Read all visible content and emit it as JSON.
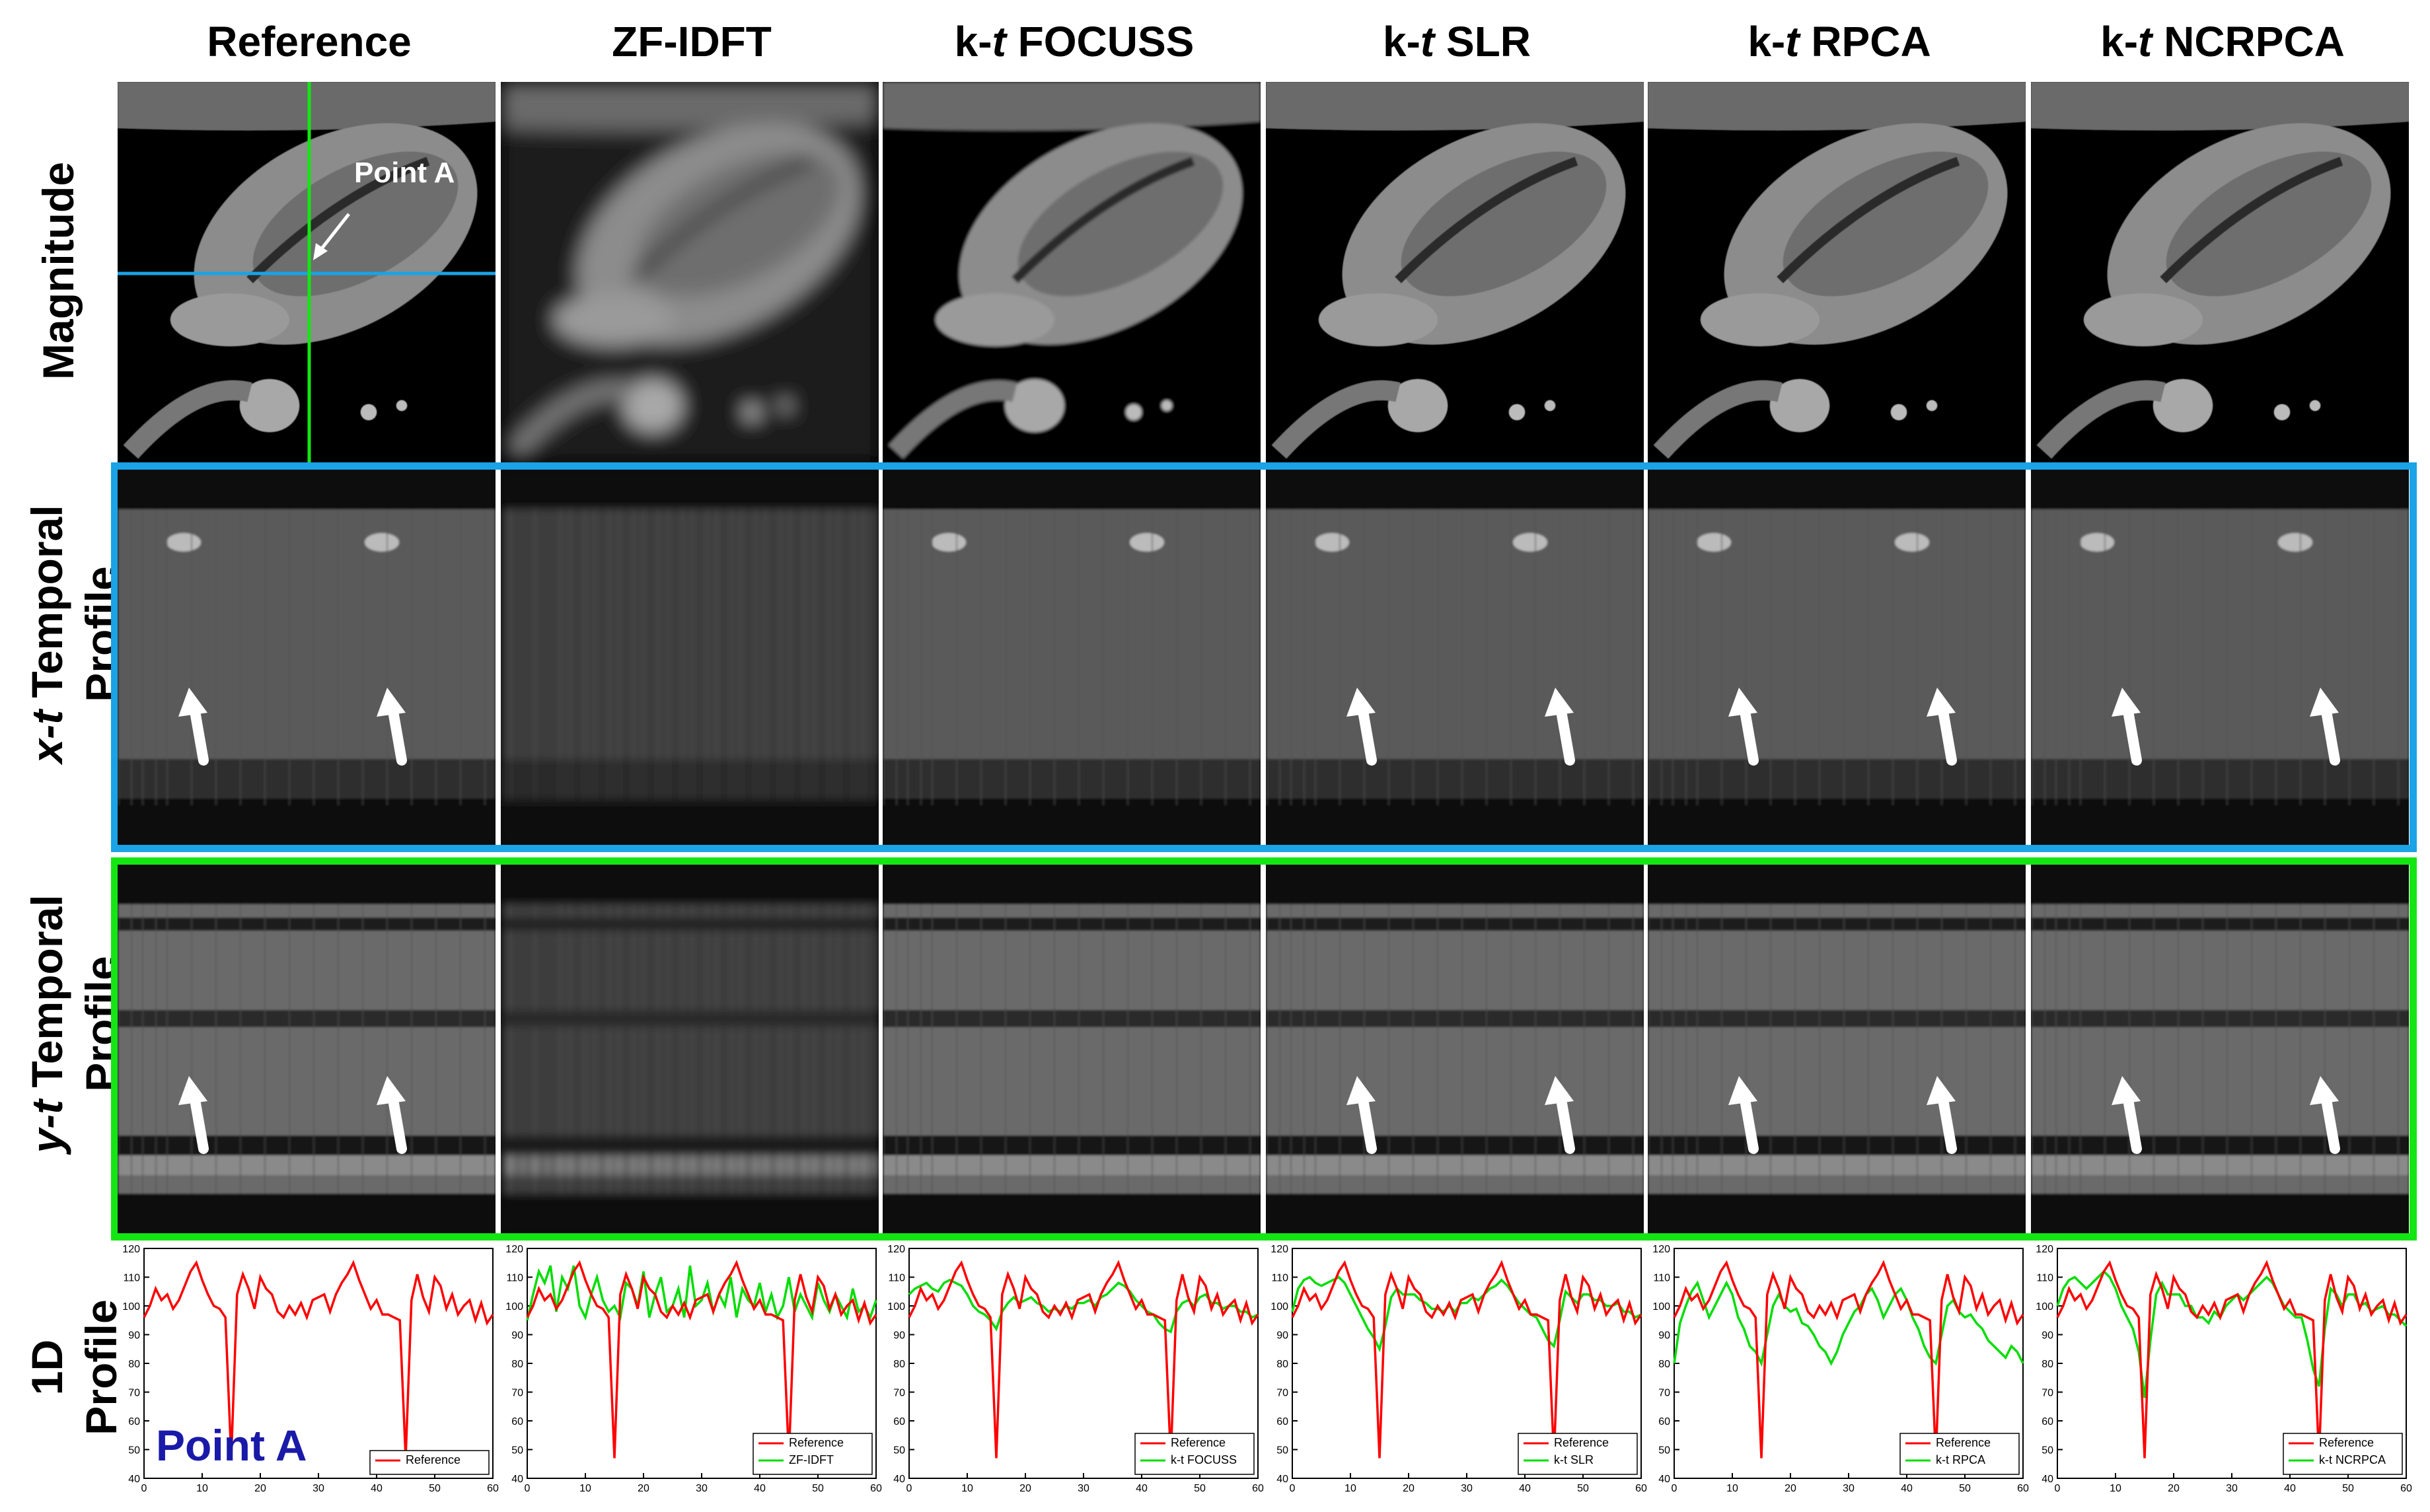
{
  "columns": [
    {
      "prefix": "",
      "italic": "",
      "suffix": "Reference"
    },
    {
      "prefix": "",
      "italic": "",
      "suffix": "ZF-IDFT"
    },
    {
      "prefix": "k-",
      "italic": "t",
      "suffix": " FOCUSS"
    },
    {
      "prefix": "k-",
      "italic": "t",
      "suffix": " SLR"
    },
    {
      "prefix": "k-",
      "italic": "t",
      "suffix": " RPCA"
    },
    {
      "prefix": "k-",
      "italic": "t",
      "suffix": " NCRPCA"
    }
  ],
  "rows": {
    "magnitude": "Magnitude",
    "xt": {
      "italic": "x-t",
      "rest": " Temporal",
      "line2": "Profile"
    },
    "yt": {
      "italic": "y-t",
      "rest": " Temporal",
      "line2": "Profile"
    },
    "oned": {
      "line1": "1D",
      "line2": "Profile"
    }
  },
  "annotation": {
    "point_label": "Point A"
  },
  "colors": {
    "xt_frame": "#1aa3e6",
    "yt_frame": "#14e614",
    "reference_line": "#ff0000",
    "method_line": "#00dd00",
    "point_a_label": "#1a1aa8"
  },
  "chart_data": {
    "type": "line",
    "ylim": [
      40,
      120
    ],
    "xlim": [
      0,
      60
    ],
    "yticks": [
      "120",
      "110",
      "100",
      "90",
      "80",
      "70",
      "60",
      "50",
      "40"
    ],
    "xticks": [
      "0",
      "10",
      "20",
      "30",
      "40",
      "50",
      "60"
    ],
    "legend_position": "bottom-right",
    "reference_name": "Reference",
    "reference": [
      96,
      100,
      106,
      102,
      104,
      99,
      102,
      107,
      112,
      115,
      109,
      104,
      100,
      99,
      96,
      47,
      104,
      111,
      106,
      99,
      110,
      106,
      104,
      98,
      96,
      100,
      97,
      101,
      96,
      102,
      103,
      104,
      98,
      104,
      108,
      111,
      115,
      109,
      104,
      99,
      102,
      97,
      97,
      96,
      95,
      47,
      102,
      111,
      103,
      98,
      110,
      107,
      99,
      104,
      97,
      100,
      102,
      95,
      101,
      94,
      97
    ],
    "panels": [
      {
        "legend": [
          "Reference"
        ],
        "method": null
      },
      {
        "legend": [
          "Reference",
          "ZF-IDFT"
        ],
        "method": [
          95,
          104,
          112,
          108,
          114,
          98,
          110,
          106,
          114,
          100,
          96,
          104,
          110,
          102,
          98,
          100,
          96,
          108,
          106,
          100,
          112,
          96,
          104,
          110,
          98,
          100,
          106,
          96,
          114,
          100,
          102,
          108,
          98,
          104,
          100,
          110,
          96,
          106,
          102,
          100,
          108,
          98,
          104,
          96,
          100,
          110,
          98,
          104,
          100,
          96,
          108,
          102,
          98,
          104,
          100,
          96,
          106,
          98,
          100,
          96,
          102
        ]
      },
      {
        "legend": [
          "Reference",
          "k-t FOCUSS"
        ],
        "method": [
          104,
          106,
          107,
          108,
          106,
          105,
          108,
          109,
          108,
          107,
          104,
          100,
          98,
          97,
          95,
          92,
          98,
          101,
          103,
          101,
          102,
          103,
          101,
          100,
          98,
          99,
          98,
          100,
          99,
          101,
          101,
          102,
          100,
          103,
          104,
          106,
          108,
          107,
          105,
          102,
          100,
          98,
          97,
          94,
          92,
          91,
          98,
          101,
          102,
          100,
          103,
          104,
          101,
          101,
          99,
          100,
          100,
          98,
          98,
          96,
          97
        ]
      },
      {
        "legend": [
          "Reference",
          "k-t SLR"
        ],
        "method": [
          98,
          106,
          109,
          110,
          108,
          107,
          108,
          109,
          110,
          108,
          104,
          100,
          96,
          92,
          89,
          85,
          93,
          103,
          106,
          104,
          104,
          104,
          102,
          101,
          99,
          99,
          98,
          100,
          98,
          101,
          101,
          103,
          102,
          104,
          106,
          107,
          109,
          107,
          104,
          101,
          99,
          97,
          96,
          92,
          88,
          86,
          95,
          105,
          103,
          101,
          104,
          104,
          102,
          102,
          100,
          100,
          101,
          98,
          98,
          96,
          97
        ]
      },
      {
        "legend": [
          "Reference",
          "k-t RPCA"
        ],
        "method": [
          80,
          94,
          100,
          105,
          108,
          102,
          96,
          100,
          104,
          108,
          104,
          96,
          92,
          86,
          84,
          80,
          90,
          100,
          104,
          100,
          98,
          99,
          94,
          93,
          90,
          86,
          84,
          80,
          84,
          90,
          94,
          98,
          100,
          104,
          106,
          102,
          96,
          100,
          104,
          106,
          102,
          96,
          92,
          86,
          82,
          80,
          90,
          100,
          102,
          98,
          96,
          97,
          94,
          92,
          88,
          86,
          84,
          82,
          86,
          84,
          80
        ]
      },
      {
        "legend": [
          "Reference",
          "k-t NCRPCA"
        ],
        "method": [
          100,
          106,
          109,
          110,
          108,
          106,
          108,
          110,
          112,
          110,
          106,
          100,
          96,
          92,
          84,
          68,
          88,
          104,
          108,
          104,
          104,
          104,
          100,
          100,
          96,
          96,
          94,
          98,
          96,
          100,
          102,
          104,
          102,
          104,
          106,
          108,
          110,
          108,
          104,
          100,
          98,
          96,
          96,
          88,
          78,
          72,
          92,
          106,
          104,
          100,
          104,
          104,
          100,
          101,
          98,
          99,
          100,
          97,
          97,
          95,
          93
        ]
      }
    ]
  }
}
